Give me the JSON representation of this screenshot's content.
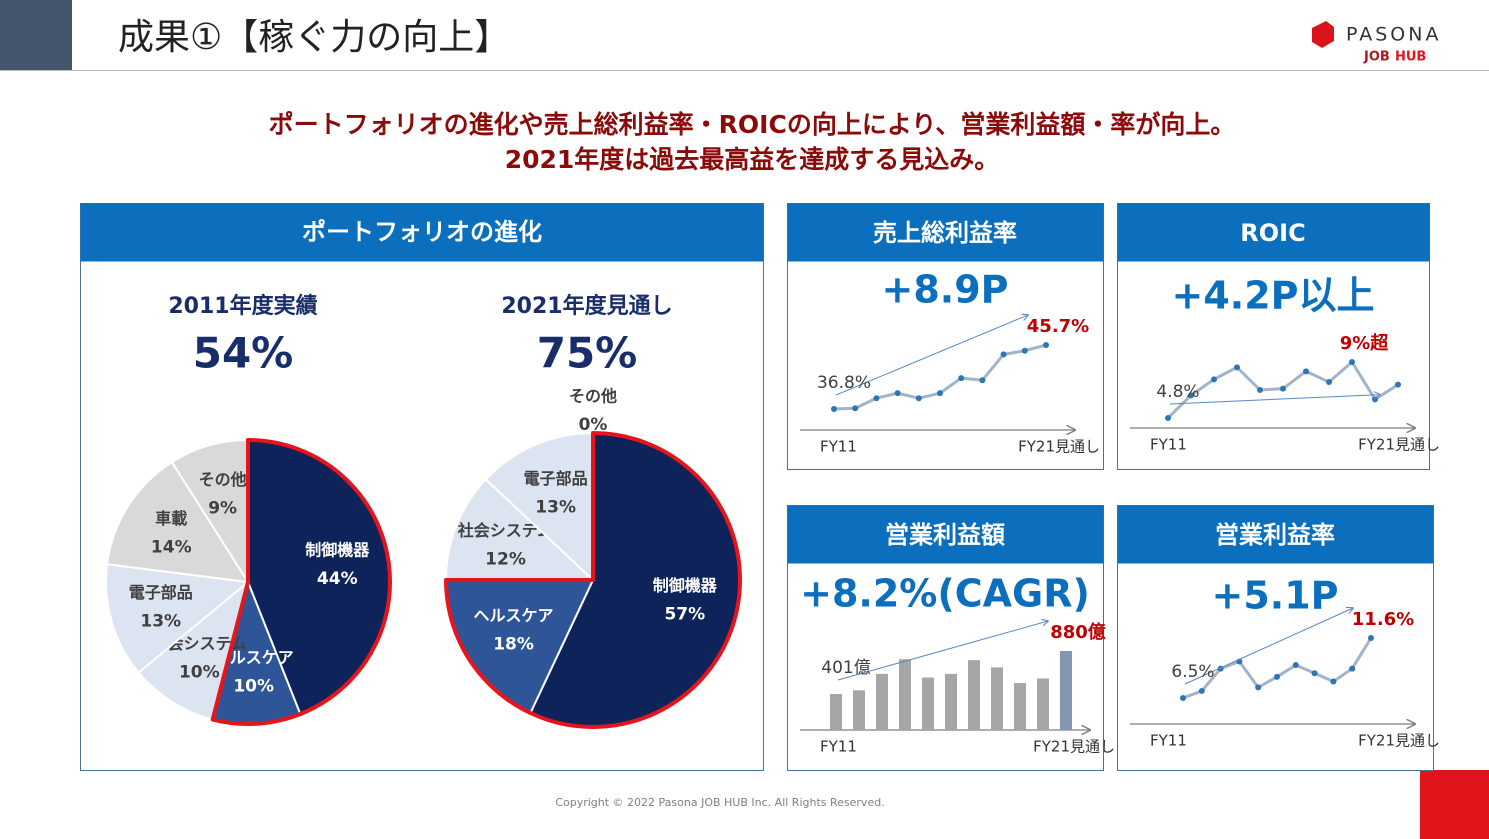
{
  "header": {
    "title": "成果①【稼ぐ力の向上】",
    "logo_top": "PASONA",
    "logo_job": "JOB",
    "logo_hub": "HUB"
  },
  "headline": [
    "ポートフォリオの進化や売上総利益率・ROICの向上により、営業利益額・率が向上。",
    "2021年度は過去最高益を達成する見込み。"
  ],
  "panel_title": "ポートフォリオの進化",
  "footer": "Copyright © 2022 Pasona JOB HUB Inc. All Rights Reserved.",
  "chart_data": [
    {
      "type": "pie",
      "subtitle": "2011年度実績",
      "highlight_text": "54%",
      "categories": [
        "制御機器",
        "ヘルスケア",
        "社会システム",
        "電子部品",
        "車載",
        "その他"
      ],
      "values": [
        44,
        10,
        10,
        13,
        14,
        9
      ],
      "value_labels": [
        "44%",
        "10%",
        "10%",
        "13%",
        "14%",
        "9%"
      ],
      "colors": [
        "#0d2359",
        "#2e5597",
        "#dce3f1",
        "#dce3f1",
        "#d9d9d9",
        "#d9d9d9"
      ],
      "outlined": [
        true,
        true,
        false,
        false,
        false,
        false
      ],
      "outline_color": "#e8141c"
    },
    {
      "type": "pie",
      "subtitle": "2021年度見通し",
      "highlight_text": "75%",
      "categories": [
        "制御機器",
        "ヘルスケア",
        "社会システム",
        "電子部品",
        "その他"
      ],
      "values": [
        57,
        18,
        12,
        13,
        0
      ],
      "value_labels": [
        "57%",
        "18%",
        "12%",
        "13%",
        "0%"
      ],
      "colors": [
        "#0d2359",
        "#2e5597",
        "#dce3f1",
        "#dce3f1",
        "#d9d9d9"
      ],
      "outlined": [
        true,
        true,
        false,
        false,
        false
      ],
      "outline_color": "#e8141c"
    },
    {
      "type": "line",
      "title": "売上総利益率",
      "headline": "+8.9P",
      "categories": [
        "FY11",
        null,
        null,
        null,
        null,
        null,
        null,
        null,
        null,
        null,
        "FY21見通し"
      ],
      "values": [
        36.8,
        36.9,
        38.3,
        39.0,
        38.3,
        39.0,
        41.1,
        40.8,
        44.4,
        44.9,
        45.7
      ],
      "value_labels": [
        "36.8%",
        null,
        null,
        null,
        null,
        null,
        null,
        null,
        null,
        null,
        "45.7%"
      ],
      "color": "#a3b3c8",
      "marker_color": "#2e75b6"
    },
    {
      "type": "line",
      "title": "ROIC",
      "headline": "+4.2P以上",
      "categories": [
        "FY11",
        null,
        null,
        null,
        null,
        null,
        null,
        null,
        null,
        null,
        "FY21見通し"
      ],
      "values": [
        4.8,
        6.5,
        7.7,
        8.6,
        6.9,
        7.0,
        8.3,
        7.5,
        9.0,
        6.2,
        7.3
      ],
      "value_labels": [
        "4.8%",
        null,
        null,
        null,
        null,
        null,
        null,
        null,
        "9%超",
        null,
        null
      ],
      "color": "#a3b3c8",
      "marker_color": "#2e75b6"
    },
    {
      "type": "bar",
      "title": "営業利益額",
      "headline": "+8.2%(CAGR)",
      "categories": [
        "FY11",
        null,
        null,
        null,
        null,
        null,
        null,
        null,
        null,
        null,
        "FY21見通し"
      ],
      "values": [
        401,
        442,
        625,
        788,
        584,
        625,
        778,
        697,
        523,
        574,
        880
      ],
      "value_labels": [
        "401億",
        null,
        null,
        null,
        null,
        null,
        null,
        null,
        null,
        null,
        "880億"
      ],
      "colors": [
        "#a6a6a6",
        "#a6a6a6",
        "#a6a6a6",
        "#a6a6a6",
        "#a6a6a6",
        "#a6a6a6",
        "#a6a6a6",
        "#a6a6a6",
        "#a6a6a6",
        "#a6a6a6",
        "#8496b0"
      ]
    },
    {
      "type": "line",
      "title": "営業利益率",
      "headline": "+5.1P",
      "categories": [
        "FY11",
        null,
        null,
        null,
        null,
        null,
        null,
        null,
        null,
        null,
        "FY21見通し"
      ],
      "values": [
        6.5,
        7.1,
        9.0,
        9.6,
        7.4,
        8.3,
        9.3,
        8.6,
        7.9,
        9.0,
        11.6
      ],
      "value_labels": [
        "6.5%",
        null,
        null,
        null,
        null,
        null,
        null,
        null,
        null,
        null,
        "11.6%"
      ],
      "color": "#a3b3c8",
      "marker_color": "#2e75b6"
    }
  ]
}
